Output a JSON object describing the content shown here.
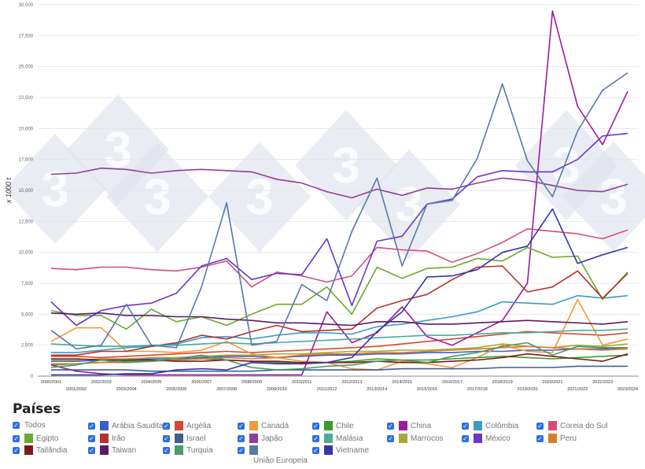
{
  "chart_data": {
    "type": "line",
    "title": "",
    "xlabel": "",
    "ylabel": "x 1000 t",
    "ylim": [
      0,
      30000
    ],
    "yticks": [
      "0",
      "2,500",
      "5,000",
      "7,500",
      "10,000",
      "12,500",
      "15,000",
      "17,500",
      "20,000",
      "22,500",
      "25,000",
      "27,500",
      "30,000"
    ],
    "grid": true,
    "legend_position": "bottom",
    "categories": [
      "2000/2001",
      "2001/2002",
      "2002/2003",
      "2003/2004",
      "2004/2005",
      "2005/2006",
      "2006/2007",
      "2007/2008",
      "2008/2009",
      "2009/2010",
      "2010/2011",
      "2011/2012",
      "2012/2013",
      "2013/2014",
      "2014/2015",
      "2015/2016",
      "2016/2017",
      "2017/2018",
      "2018/2019",
      "2019/2020",
      "2020/2021",
      "2021/2022",
      "2022/2023",
      "2023/2024"
    ],
    "series": [
      {
        "name": "Arábia Saudita",
        "color": "#3b5fc9",
        "values": [
          1200,
          1200,
          1300,
          1300,
          1400,
          1400,
          1500,
          1600,
          1600,
          1500,
          1600,
          1700,
          1700,
          1800,
          1800,
          1900,
          1900,
          2000,
          2000,
          2100,
          2100,
          2200,
          2200,
          2300
        ]
      },
      {
        "name": "Argélia",
        "color": "#d9472b",
        "values": [
          1600,
          1600,
          1500,
          1600,
          1700,
          1800,
          1900,
          2000,
          1900,
          2000,
          2100,
          2200,
          2300,
          2400,
          2600,
          2800,
          3000,
          3200,
          3400,
          3600,
          3500,
          3400,
          3300,
          3500
        ]
      },
      {
        "name": "Canadá",
        "color": "#f29a38",
        "values": [
          2800,
          3900,
          3900,
          2000,
          2000,
          1900,
          2100,
          2800,
          1800,
          1500,
          1200,
          1100,
          600,
          500,
          1200,
          1000,
          700,
          1500,
          2500,
          2000,
          1900,
          6200,
          2500,
          3000
        ]
      },
      {
        "name": "Chile",
        "color": "#3c9a2c",
        "values": [
          900,
          1000,
          1100,
          1200,
          1200,
          1300,
          1400,
          1300,
          1200,
          1100,
          1000,
          1100,
          1200,
          1400,
          1300,
          1300,
          1400,
          1500,
          1600,
          1500,
          1400,
          1500,
          1600,
          1700
        ]
      },
      {
        "name": "China",
        "color": "#9a1aa3",
        "values": [
          900,
          400,
          200,
          100,
          100,
          100,
          100,
          100,
          100,
          100,
          100,
          5200,
          2700,
          3500,
          5600,
          3200,
          2500,
          3500,
          4500,
          7500,
          29500,
          21800,
          18700,
          23000
        ]
      },
      {
        "name": "Colômbia",
        "color": "#3a9cc9",
        "values": [
          1900,
          1900,
          2100,
          2300,
          2400,
          2600,
          3100,
          3200,
          3000,
          3300,
          3500,
          3500,
          3400,
          4000,
          4200,
          4500,
          4800,
          5200,
          6000,
          5900,
          5800,
          6500,
          6300,
          6500
        ]
      },
      {
        "name": "Coreia do Sul",
        "color": "#d44d7a",
        "values": [
          8700,
          8600,
          8800,
          8800,
          8600,
          8500,
          8800,
          9300,
          7200,
          8400,
          8100,
          7600,
          8100,
          10400,
          10200,
          10100,
          9200,
          9900,
          10800,
          11900,
          11700,
          11500,
          11100,
          11800
        ]
      },
      {
        "name": "Egipto",
        "color": "#6aaa2c",
        "values": [
          5300,
          4900,
          4900,
          3800,
          5400,
          4400,
          4800,
          4100,
          5000,
          5800,
          5800,
          7200,
          5000,
          8800,
          7900,
          8700,
          8800,
          9500,
          9300,
          10400,
          9600,
          9700,
          6200,
          8400
        ]
      },
      {
        "name": "Irão",
        "color": "#b5302e",
        "values": [
          1700,
          1700,
          2000,
          2000,
          2400,
          2700,
          3300,
          3000,
          3600,
          4100,
          3600,
          3700,
          3800,
          5500,
          6100,
          6600,
          7800,
          8800,
          8900,
          6800,
          7200,
          8500,
          6300,
          8300
        ]
      },
      {
        "name": "Israel",
        "color": "#3d5e96",
        "values": [
          500,
          500,
          500,
          500,
          400,
          400,
          400,
          400,
          400,
          500,
          500,
          500,
          500,
          500,
          600,
          600,
          600,
          600,
          700,
          700,
          700,
          800,
          800,
          800
        ]
      },
      {
        "name": "Japão",
        "color": "#8e3e9e",
        "values": [
          16300,
          16400,
          16800,
          16700,
          16400,
          16600,
          16700,
          16600,
          16500,
          15900,
          15600,
          14900,
          14400,
          15100,
          14600,
          15200,
          15100,
          15600,
          16000,
          15800,
          15400,
          15000,
          14900,
          15500
        ]
      },
      {
        "name": "Malásia",
        "color": "#4aab9a",
        "values": [
          2600,
          2500,
          2400,
          2400,
          2500,
          2500,
          2600,
          2700,
          2600,
          2700,
          2800,
          2900,
          3000,
          3100,
          3200,
          3300,
          3300,
          3400,
          3500,
          3500,
          3600,
          3700,
          3700,
          3800
        ]
      },
      {
        "name": "Marrocos",
        "color": "#a8a83a",
        "values": [
          1300,
          1300,
          1400,
          1400,
          1500,
          1500,
          1600,
          1700,
          1700,
          1800,
          1800,
          1900,
          2000,
          2000,
          2100,
          2100,
          2200,
          2300,
          2600,
          2400,
          2300,
          2500,
          2400,
          2600
        ]
      },
      {
        "name": "México",
        "color": "#6a35c9",
        "values": [
          6000,
          4100,
          5300,
          5700,
          5900,
          6700,
          8900,
          9500,
          7800,
          8300,
          8200,
          11100,
          5700,
          10900,
          11300,
          13900,
          14300,
          16100,
          16600,
          16500,
          16500,
          17500,
          19400,
          19600
        ]
      },
      {
        "name": "Peru",
        "color": "#e07a28",
        "values": [
          1000,
          1000,
          1100,
          1100,
          1200,
          1300,
          1400,
          1500,
          1400,
          1500,
          1700,
          1800,
          1800,
          1900,
          1900,
          2000,
          2100,
          2200,
          2300,
          2400,
          2300,
          2200,
          2100,
          2200
        ]
      },
      {
        "name": "Tailândia",
        "color": "#7a1a1a",
        "values": [
          1400,
          1400,
          1300,
          1300,
          1300,
          1200,
          1200,
          1300,
          1200,
          1200,
          1100,
          1100,
          1100,
          1200,
          1100,
          1100,
          1200,
          1300,
          1500,
          1800,
          1600,
          1400,
          1200,
          1800
        ]
      },
      {
        "name": "Taiwan",
        "color": "#5a1a6a",
        "values": [
          5100,
          5000,
          5100,
          4900,
          4900,
          4800,
          4800,
          4600,
          4500,
          4300,
          4300,
          4200,
          4100,
          4400,
          4400,
          4200,
          4200,
          4300,
          4400,
          4500,
          4400,
          4300,
          4200,
          4400
        ]
      },
      {
        "name": "Turquia",
        "color": "#4a9a6a",
        "values": [
          700,
          900,
          1300,
          1100,
          1200,
          1400,
          1700,
          1300,
          700,
          500,
          600,
          800,
          900,
          1200,
          1300,
          1100,
          1600,
          1900,
          2400,
          2700,
          1700,
          2400,
          2300,
          2300
        ]
      },
      {
        "name": "União Europeia",
        "color": "#5a78a8",
        "values": [
          3700,
          2200,
          2500,
          5800,
          2500,
          2300,
          7200,
          14000,
          2500,
          2800,
          7400,
          6100,
          11700,
          16000,
          8900,
          13900,
          14200,
          17600,
          23600,
          17400,
          14500,
          19800,
          23100,
          24500
        ]
      },
      {
        "name": "Vietname",
        "color": "#3436a8",
        "values": [
          100,
          100,
          100,
          200,
          200,
          500,
          600,
          500,
          1100,
          1000,
          1000,
          1100,
          1500,
          3600,
          5200,
          8000,
          8100,
          8600,
          10000,
          10500,
          13500,
          9100,
          9800,
          10400
        ]
      }
    ]
  },
  "legend": {
    "title": "Países",
    "all_label": "Todos",
    "check_glyph": "✓"
  }
}
